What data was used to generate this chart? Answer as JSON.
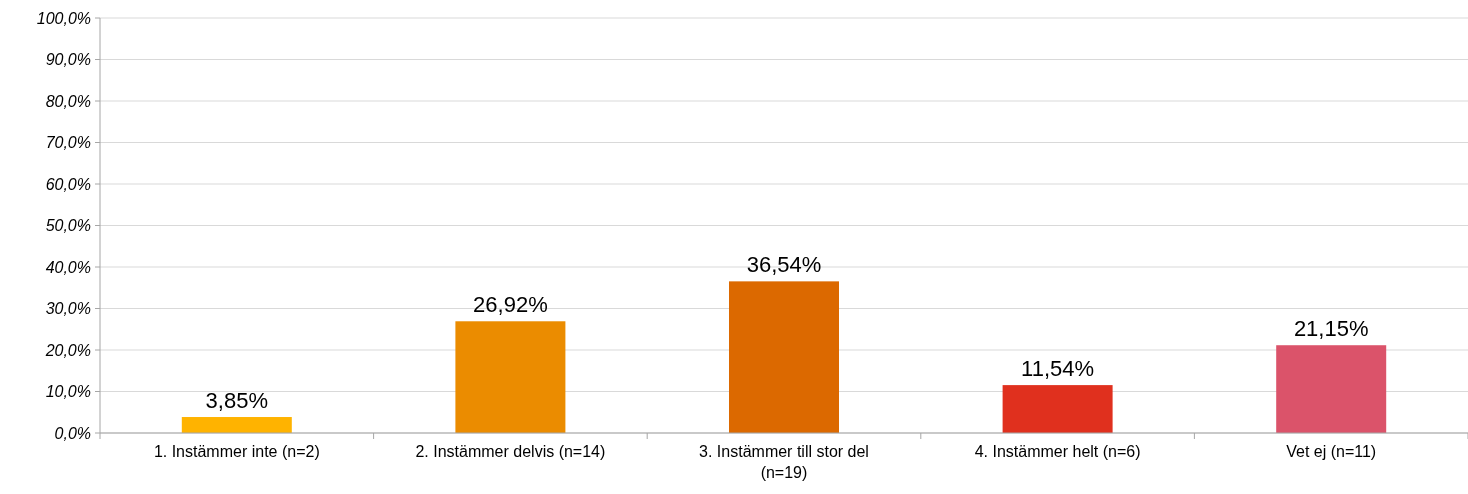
{
  "chart_data": {
    "type": "bar",
    "categories": [
      "1. Instämmer inte (n=2)",
      "2. Instämmer delvis (n=14)",
      "3. Instämmer till stor del (n=19)",
      "4. Instämmer helt (n=6)",
      "Vet ej (n=11)"
    ],
    "values": [
      3.85,
      26.92,
      36.54,
      11.54,
      21.15
    ],
    "colors": [
      "#ffb300",
      "#eb8c00",
      "#dc6900",
      "#e0301e",
      "#db536a"
    ],
    "value_labels": [
      "3,85%",
      "26,92%",
      "36,54%",
      "11,54%",
      "21,15%"
    ],
    "ylim": [
      0,
      100
    ],
    "yticks": [
      {
        "value": 0,
        "label": "0,0%"
      },
      {
        "value": 10,
        "label": "10,0%"
      },
      {
        "value": 20,
        "label": "20,0%"
      },
      {
        "value": 30,
        "label": "30,0%"
      },
      {
        "value": 40,
        "label": "40,0%"
      },
      {
        "value": 50,
        "label": "50,0%"
      },
      {
        "value": 60,
        "label": "60,0%"
      },
      {
        "value": 70,
        "label": "70,0%"
      },
      {
        "value": 80,
        "label": "80,0%"
      },
      {
        "value": 90,
        "label": "90,0%"
      },
      {
        "value": 100,
        "label": "100,0%"
      }
    ],
    "grid": "y"
  }
}
